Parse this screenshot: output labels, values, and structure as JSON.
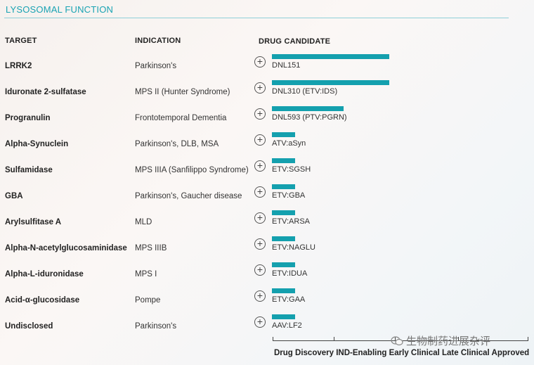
{
  "section": {
    "title": "LYSOSOMAL FUNCTION"
  },
  "headers": {
    "target": "TARGET",
    "indication": "INDICATION",
    "drug": "DRUG CANDIDATE"
  },
  "rows": [
    {
      "target": "LRRK2",
      "indication": "Parkinson's",
      "drug": "DNL151",
      "progress": 0.46
    },
    {
      "target": "Iduronate 2-sulfatase",
      "indication": "MPS II (Hunter Syndrome)",
      "drug": "DNL310 (ETV:IDS)",
      "progress": 0.46
    },
    {
      "target": "Progranulin",
      "indication": "Frontotemporal Dementia",
      "drug": "DNL593 (PTV:PGRN)",
      "progress": 0.28
    },
    {
      "target": "Alpha-Synuclein",
      "indication": "Parkinson's, DLB, MSA",
      "drug": "ATV:aSyn",
      "progress": 0.09
    },
    {
      "target": "Sulfamidase",
      "indication": "MPS IIIA (Sanfilippo Syndrome)",
      "drug": "ETV:SGSH",
      "progress": 0.09
    },
    {
      "target": "GBA",
      "indication": "Parkinson's, Gaucher disease",
      "drug": "ETV:GBA",
      "progress": 0.09
    },
    {
      "target": "Arylsulfitase A",
      "indication": "MLD",
      "drug": "ETV:ARSA",
      "progress": 0.09
    },
    {
      "target": "Alpha-N-acetylglucosaminidase",
      "indication": "MPS IIIB",
      "drug": "ETV:NAGLU",
      "progress": 0.09
    },
    {
      "target": "Alpha-L-iduronidase",
      "indication": "MPS I",
      "drug": "ETV:IDUA",
      "progress": 0.09
    },
    {
      "target": "Acid-α-glucosidase",
      "indication": "Pompe",
      "drug": "ETV:GAA",
      "progress": 0.09
    },
    {
      "target": "Undisclosed",
      "indication": "Parkinson's",
      "drug": "AAV:LF2",
      "progress": 0.09
    }
  ],
  "stages": {
    "labels_text": "Drug Discovery IND-Enabling Early Clinical Late Clinical Approved"
  },
  "watermark": {
    "text": "生物制药进展杂评"
  },
  "colors": {
    "accent": "#14a0ae",
    "title": "#1aa3b3"
  },
  "icons": {
    "expand": "plus-circle-icon"
  }
}
